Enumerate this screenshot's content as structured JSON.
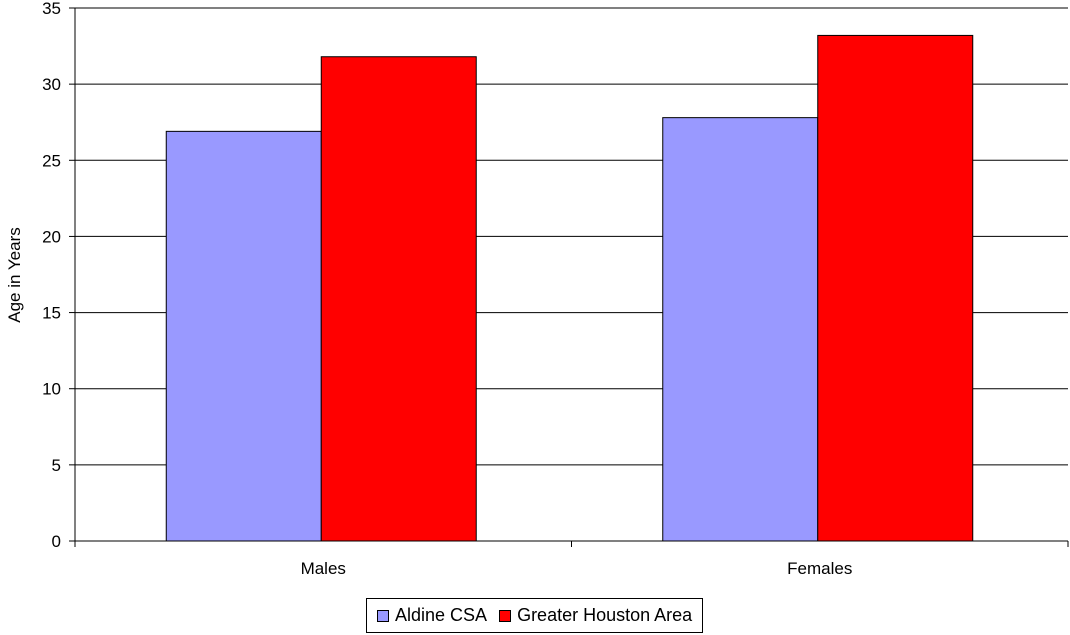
{
  "chart_data": {
    "type": "bar",
    "title": "",
    "xlabel": "",
    "ylabel": "Age in Years",
    "categories": [
      "Males",
      "Females"
    ],
    "ylim": [
      0,
      35
    ],
    "yticks": [
      0,
      5,
      10,
      15,
      20,
      25,
      30,
      35
    ],
    "grid": true,
    "legend_position": "bottom",
    "series": [
      {
        "name": "Aldine CSA",
        "values": [
          26.9,
          27.8
        ],
        "color": "#9999ff"
      },
      {
        "name": "Greater Houston Area",
        "values": [
          31.8,
          33.2
        ],
        "color": "#ff0000"
      }
    ]
  }
}
